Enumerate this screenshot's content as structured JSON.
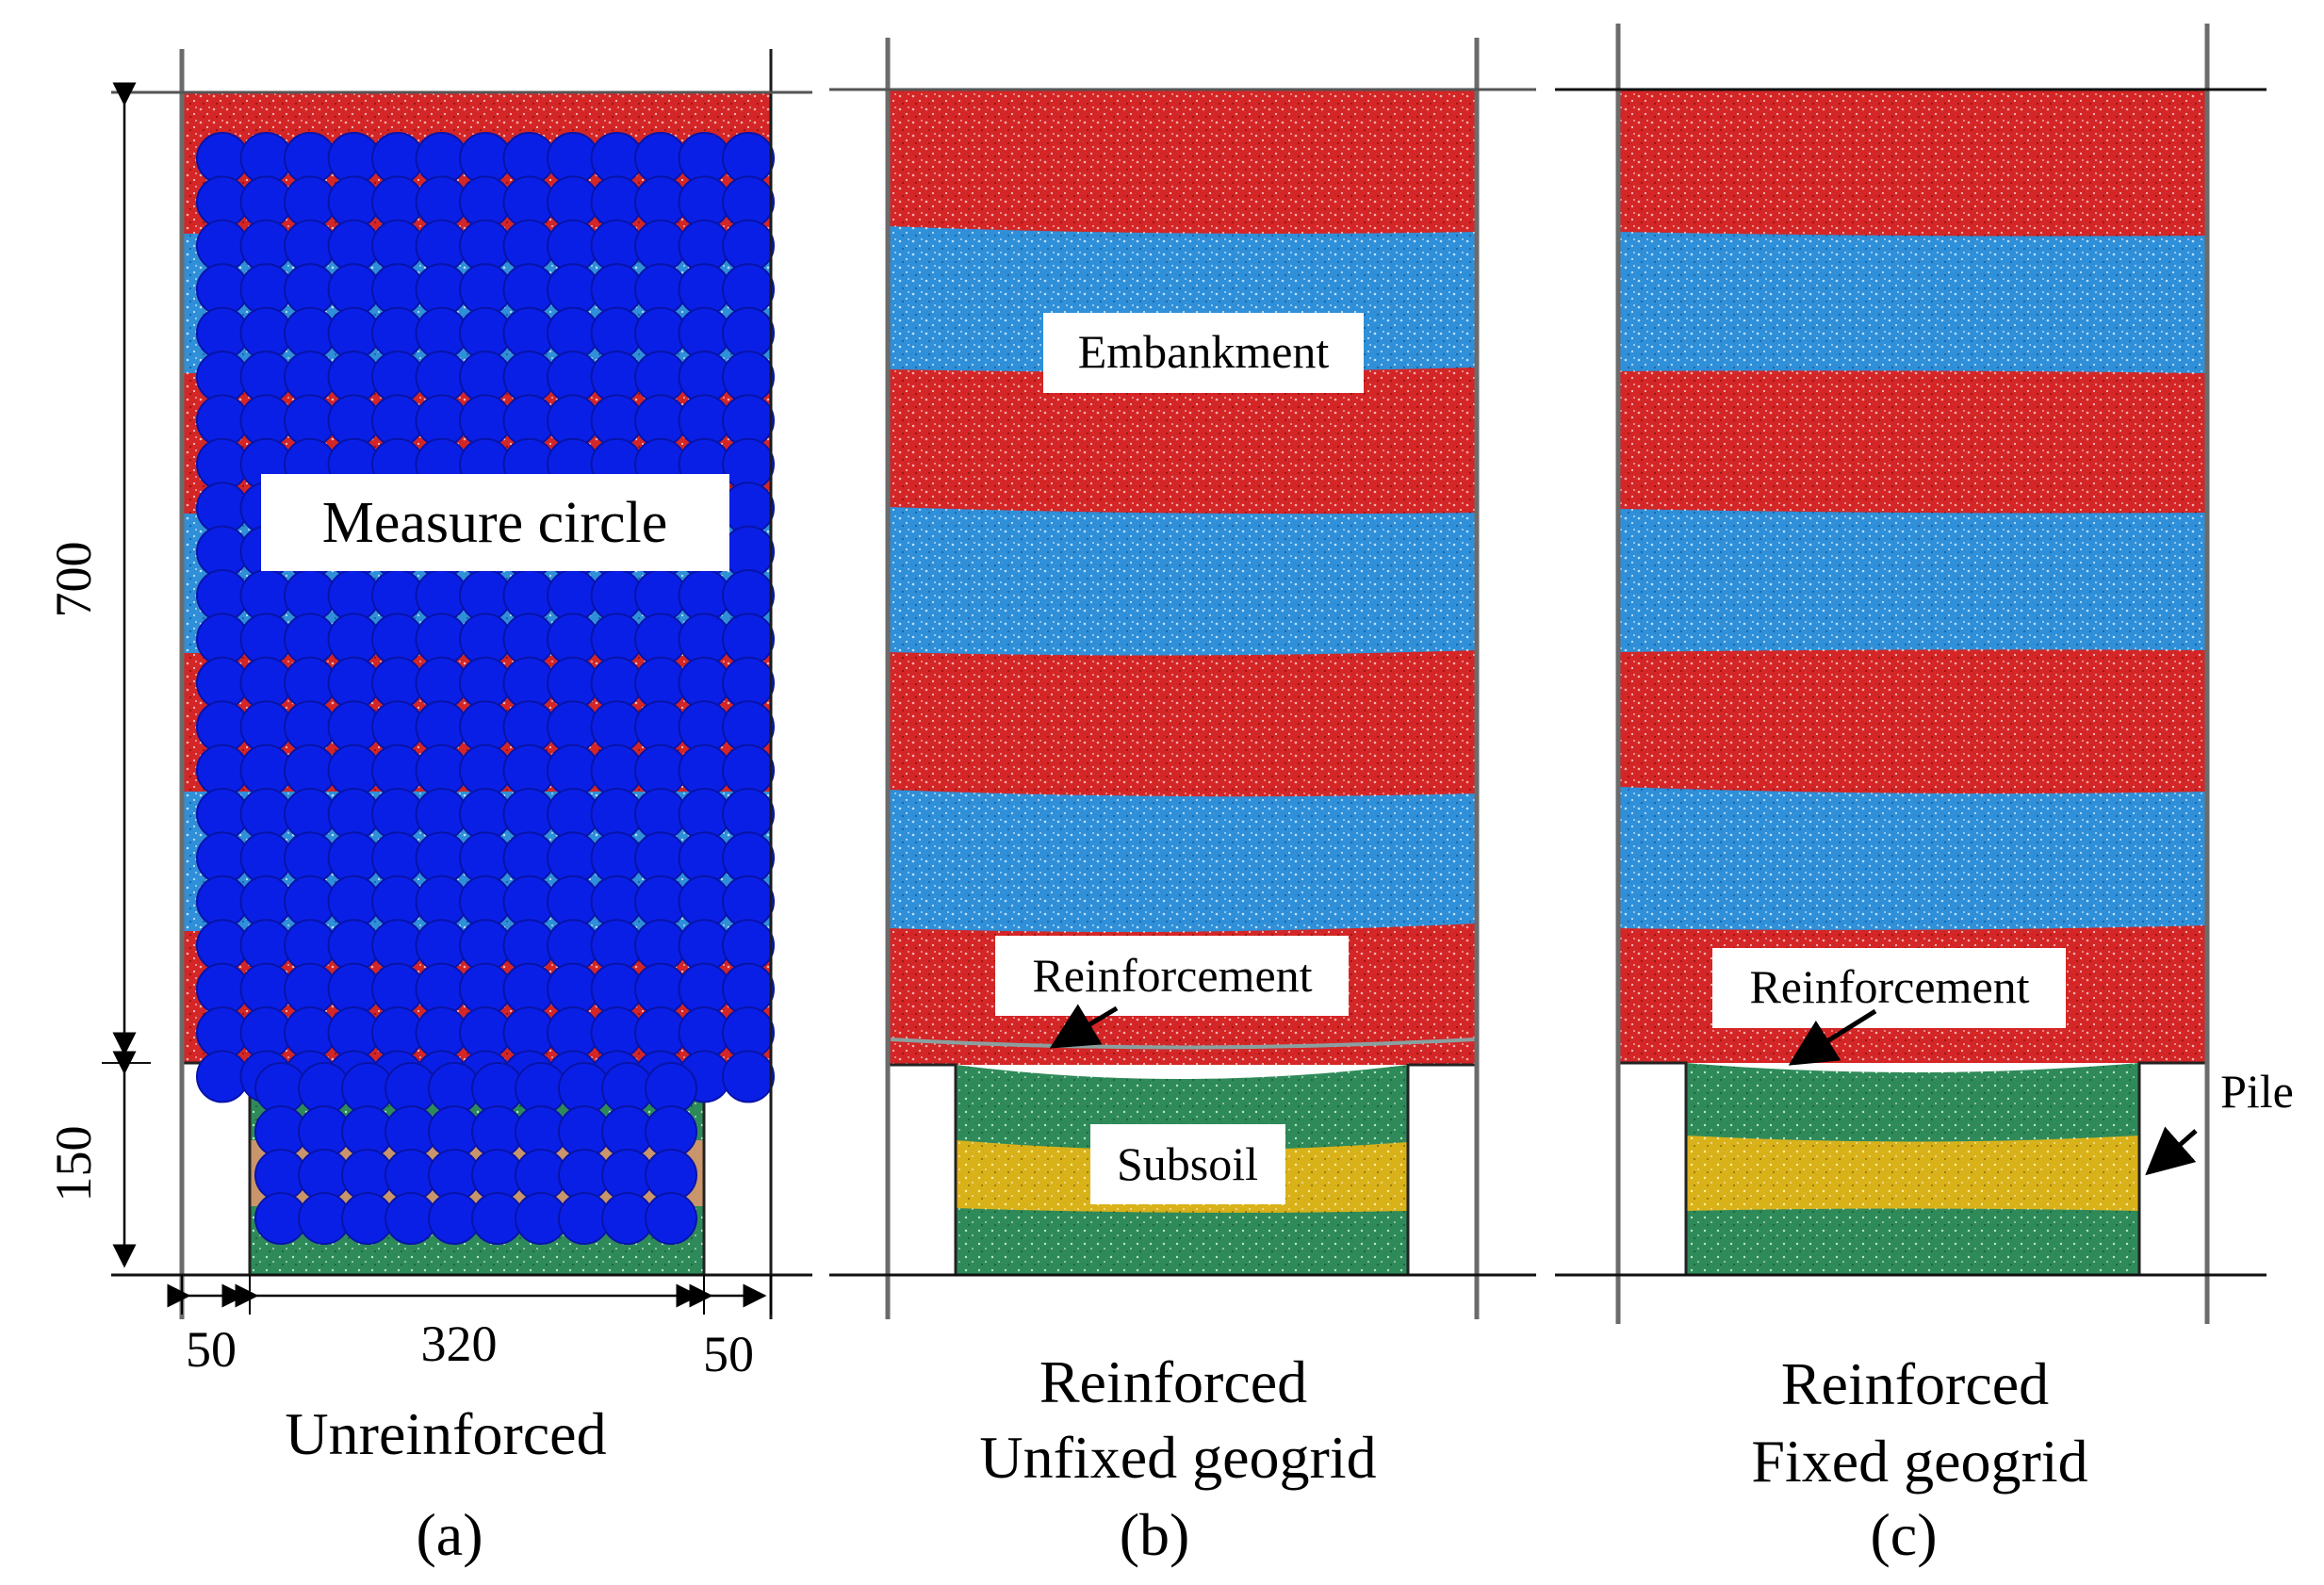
{
  "colors": {
    "embankment_red": "#d42626",
    "embankment_blue": "#2f8fd8",
    "subsoil_green": "#2f8a5a",
    "subsoil_yellow": "#d9b21a",
    "measure_circle": "#0a1fe6",
    "pile": "#ffffff",
    "wall": "#6b6b6b"
  },
  "panel_a": {
    "measure_label": "Measure circle",
    "dim_700": "700",
    "dim_150": "150",
    "dim_50_left": "50",
    "dim_320": "320",
    "dim_50_right": "50",
    "title": "Unreinforced",
    "letter": "(a)"
  },
  "panel_b": {
    "embankment_label": "Embankment",
    "reinforcement_label": "Reinforcement",
    "subsoil_label": "Subsoil",
    "title_line1": "Reinforced",
    "title_line2": "Unfixed geogrid",
    "letter": "(b)"
  },
  "panel_c": {
    "reinforcement_label": "Reinforcement",
    "pile_label": "Pile",
    "title_line1": "Reinforced",
    "title_line2": "Fixed geogrid",
    "letter": "(c)"
  }
}
